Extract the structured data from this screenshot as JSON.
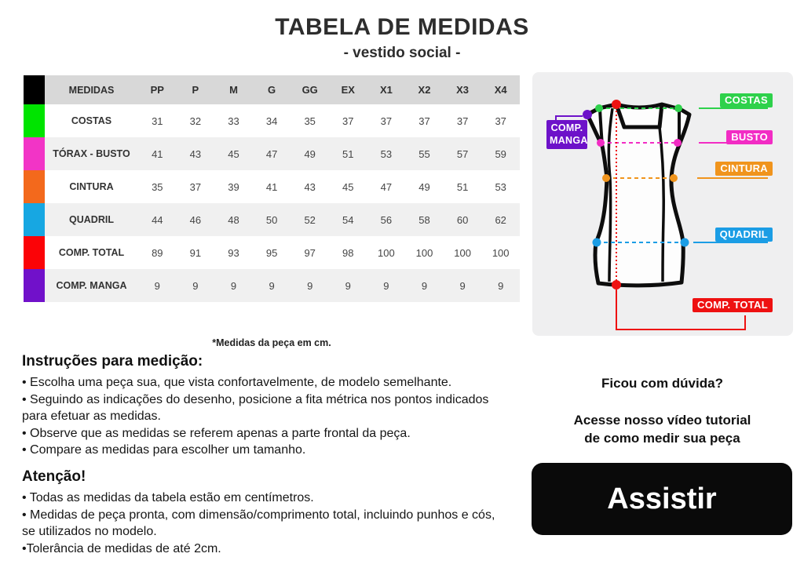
{
  "header": {
    "title": "TABELA DE MEDIDAS",
    "subtitle": "- vestido social -"
  },
  "table": {
    "header_swatch_color": "#000000",
    "columns": [
      "MEDIDAS",
      "PP",
      "P",
      "M",
      "G",
      "GG",
      "EX",
      "X1",
      "X2",
      "X3",
      "X4"
    ],
    "rows": [
      {
        "label": "COSTAS",
        "color": "#00e400",
        "values": [
          31,
          32,
          33,
          34,
          35,
          37,
          37,
          37,
          37,
          37
        ]
      },
      {
        "label": "TÓRAX - BUSTO",
        "color": "#f234c6",
        "values": [
          41,
          43,
          45,
          47,
          49,
          51,
          53,
          55,
          57,
          59
        ]
      },
      {
        "label": "CINTURA",
        "color": "#f3691c",
        "values": [
          35,
          37,
          39,
          41,
          43,
          45,
          47,
          49,
          51,
          53
        ]
      },
      {
        "label": "QUADRIL",
        "color": "#17a7e2",
        "values": [
          44,
          46,
          48,
          50,
          52,
          54,
          56,
          58,
          60,
          62
        ]
      },
      {
        "label": "COMP. TOTAL",
        "color": "#fb0307",
        "values": [
          89,
          91,
          93,
          95,
          97,
          98,
          100,
          100,
          100,
          100
        ]
      },
      {
        "label": "COMP. MANGA",
        "color": "#7111ca",
        "values": [
          9,
          9,
          9,
          9,
          9,
          9,
          9,
          9,
          9,
          9
        ]
      }
    ],
    "footnote": "*Medidas da peça em cm."
  },
  "instructions": {
    "heading": "Instruções para medição:",
    "bullets": [
      "• Escolha uma peça sua, que vista confortavelmente, de modelo semelhante.",
      "• Seguindo as indicações do desenho, posicione a fita métrica nos pontos indicados para efetuar as medidas.",
      "• Observe que as medidas se referem apenas a parte frontal da peça.",
      "• Compare as medidas para escolher um tamanho."
    ]
  },
  "attention": {
    "heading": "Atenção!",
    "bullets": [
      "• Todas as medidas da tabela estão em centímetros.",
      "• Medidas de peça pronta, com dimensão/comprimento total, incluindo punhos e cós, se utilizados no modelo.",
      "•Tolerância de medidas de até 2cm."
    ]
  },
  "diagram": {
    "labels": [
      {
        "key": "costas",
        "text": "COSTAS",
        "color": "#2ed14b"
      },
      {
        "key": "busto",
        "text": "BUSTO",
        "color": "#f22cc4"
      },
      {
        "key": "cintura",
        "text": "CINTURA",
        "color": "#f0941d"
      },
      {
        "key": "quadril",
        "text": "QUADRIL",
        "color": "#1b9de5"
      },
      {
        "key": "total",
        "text": "COMP. TOTAL",
        "color": "#ee1111"
      },
      {
        "key": "manga",
        "text": "COMP. MANGA",
        "color": "#6d12c9"
      }
    ],
    "colors": {
      "costas": "#2ed14b",
      "busto": "#f22cc4",
      "cintura": "#f0941d",
      "quadril": "#1b9de5",
      "total": "#ee1111",
      "manga": "#6d12c9"
    }
  },
  "right_panel": {
    "doubt_heading": "Ficou com dúvida?",
    "tutorial_lines": [
      "Acesse nosso vídeo tutorial",
      "de como medir sua peça"
    ],
    "watch_button": "Assistir"
  }
}
